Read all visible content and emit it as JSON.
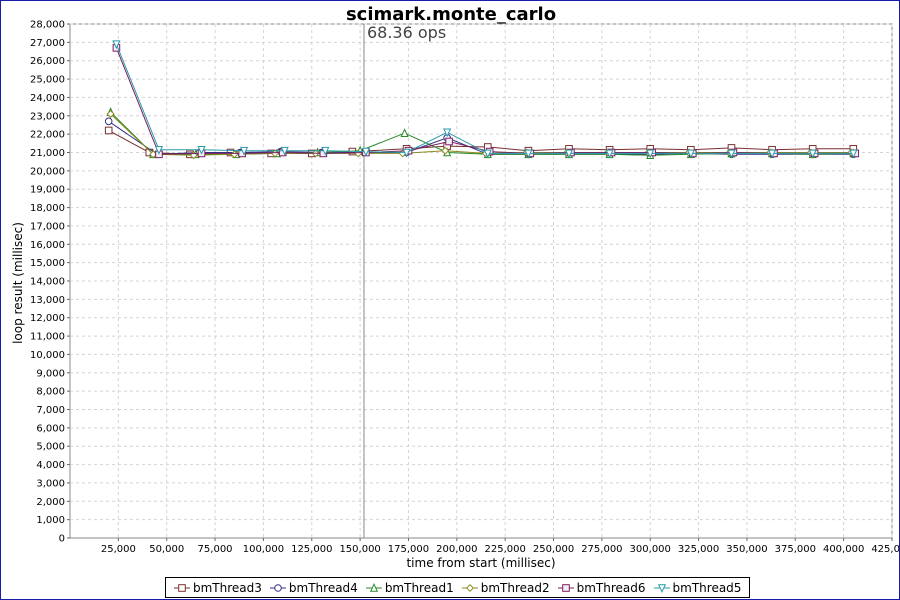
{
  "chart_data": {
    "type": "line",
    "title": "scimark.monte_carlo",
    "xlabel": "time from start (millisec)",
    "ylabel": "loop result (millisec)",
    "xlim": [
      0,
      425000
    ],
    "ylim": [
      0,
      28000
    ],
    "x_ticks": [
      25000,
      50000,
      75000,
      100000,
      125000,
      150000,
      175000,
      200000,
      225000,
      250000,
      275000,
      300000,
      325000,
      350000,
      375000,
      400000,
      425000
    ],
    "y_ticks": [
      0,
      1000,
      2000,
      3000,
      4000,
      5000,
      6000,
      7000,
      8000,
      9000,
      10000,
      11000,
      12000,
      13000,
      14000,
      15000,
      16000,
      17000,
      18000,
      19000,
      20000,
      21000,
      22000,
      23000,
      24000,
      25000,
      26000,
      27000,
      28000
    ],
    "x_tick_labels": [
      "25,000",
      "50,000",
      "75,000",
      "100,000",
      "125,000",
      "150,000",
      "175,000",
      "200,000",
      "225,000",
      "250,000",
      "275,000",
      "300,000",
      "325,000",
      "350,000",
      "375,000",
      "400,000",
      "425,000"
    ],
    "y_tick_labels": [
      "0",
      "1,000",
      "2,000",
      "3,000",
      "4,000",
      "5,000",
      "6,000",
      "7,000",
      "8,000",
      "9,000",
      "10,000",
      "11,000",
      "12,000",
      "13,000",
      "14,000",
      "15,000",
      "16,000",
      "17,000",
      "18,000",
      "19,000",
      "20,000",
      "21,000",
      "22,000",
      "23,000",
      "24,000",
      "25,000",
      "26,000",
      "27,000",
      "28,000"
    ],
    "grid": true,
    "legend_position": "bottom",
    "marker": {
      "x": 152000,
      "label": "68.36 ops"
    },
    "series": [
      {
        "name": "bmThread3",
        "color": "#7a3030",
        "symbol": "square",
        "x": [
          20000,
          41000,
          62000,
          83000,
          104000,
          125000,
          146000,
          174000,
          195000,
          216000,
          237000,
          258000,
          279000,
          300000,
          321000,
          342000,
          363000,
          384000,
          405000
        ],
        "y": [
          22200,
          21000,
          20900,
          21000,
          20950,
          20950,
          21050,
          21200,
          21350,
          21300,
          21100,
          21200,
          21150,
          21200,
          21150,
          21250,
          21150,
          21200,
          21200
        ]
      },
      {
        "name": "bmThread4",
        "color": "#30308a",
        "symbol": "circle",
        "x": [
          20000,
          45000,
          67000,
          88000,
          109000,
          130000,
          152000,
          174000,
          195000,
          216000,
          237000,
          258000,
          279000,
          300000,
          321000,
          342000,
          363000,
          384000,
          405000
        ],
        "y": [
          22700,
          20900,
          21000,
          21000,
          21050,
          21000,
          21000,
          21000,
          21800,
          20900,
          20900,
          20900,
          20900,
          20900,
          20950,
          20900,
          20900,
          20900,
          20900
        ]
      },
      {
        "name": "bmThread1",
        "color": "#2a8a2a",
        "symbol": "triangle-up",
        "x": [
          21000,
          43000,
          65000,
          86000,
          107000,
          128000,
          150000,
          173000,
          195000,
          216000,
          237000,
          258000,
          279000,
          300000,
          321000,
          342000,
          363000,
          384000,
          405000
        ],
        "y": [
          23200,
          20900,
          20900,
          20900,
          20950,
          21000,
          21100,
          22050,
          21000,
          20900,
          20900,
          20900,
          20900,
          20850,
          20900,
          20950,
          20950,
          20900,
          20950
        ]
      },
      {
        "name": "bmThread2",
        "color": "#8a8a20",
        "symbol": "diamond",
        "x": [
          21000,
          43000,
          64000,
          85000,
          106000,
          127000,
          149000,
          172000,
          194000,
          215000,
          236000,
          257000,
          278000,
          299000,
          320000,
          341000,
          362000,
          383000,
          404000
        ],
        "y": [
          23100,
          20900,
          20850,
          20900,
          20950,
          20950,
          20950,
          20950,
          21100,
          20950,
          21000,
          21000,
          21000,
          21000,
          21000,
          21000,
          21000,
          21000,
          21000
        ]
      },
      {
        "name": "bmThread6",
        "color": "#7a2060",
        "symbol": "square-open",
        "x": [
          24000,
          46000,
          68000,
          89000,
          110000,
          131000,
          153000,
          175000,
          196000,
          217000,
          238000,
          259000,
          280000,
          301000,
          322000,
          343000,
          364000,
          385000,
          406000
        ],
        "y": [
          26700,
          20900,
          20950,
          20950,
          21000,
          20950,
          21000,
          21100,
          21600,
          21050,
          20950,
          21000,
          21000,
          21000,
          20950,
          21000,
          20950,
          20950,
          20950
        ]
      },
      {
        "name": "bmThread5",
        "color": "#2a9aaa",
        "symbol": "triangle-down",
        "x": [
          24000,
          46000,
          68000,
          90000,
          111000,
          132000,
          153000,
          174000,
          195000,
          216000,
          237000,
          258000,
          279000,
          300000,
          321000,
          342000,
          363000,
          384000,
          405000
        ],
        "y": [
          26900,
          21150,
          21150,
          21100,
          21100,
          21100,
          21050,
          21000,
          22100,
          20950,
          20950,
          20950,
          20950,
          20950,
          20950,
          20950,
          20950,
          20950,
          20950
        ]
      }
    ]
  }
}
